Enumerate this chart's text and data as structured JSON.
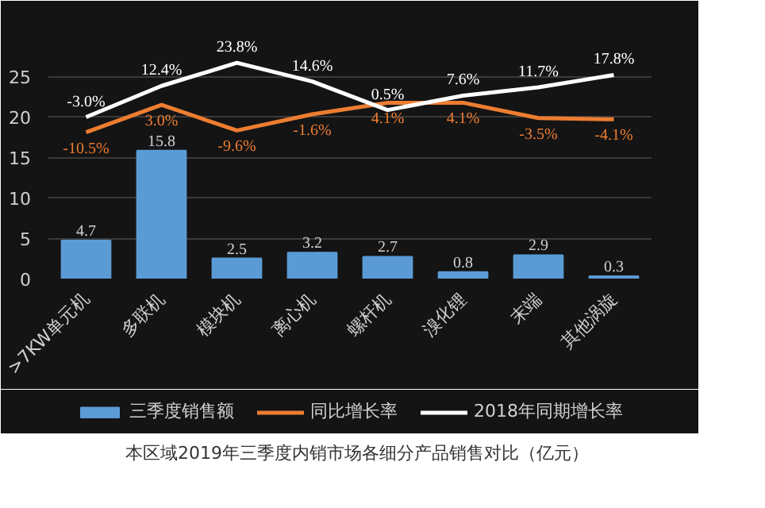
{
  "chart_data": {
    "type": "bar",
    "categories": [
      ">7KW单元机",
      "多联机",
      "模块机",
      "离心机",
      "螺杆机",
      "溴化锂",
      "末端",
      "其他涡旋"
    ],
    "series": [
      {
        "name": "三季度销售额",
        "color": "#5b9bd5",
        "values": [
          4.7,
          15.8,
          2.5,
          3.2,
          2.7,
          0.8,
          2.9,
          0.3
        ],
        "value_labels": [
          "4.7",
          "15.8",
          "2.5",
          "3.2",
          "2.7",
          "0.8",
          "2.9",
          "0.3"
        ]
      },
      {
        "name": "同比增长率",
        "type": "line",
        "axis": "y2",
        "color": "#ed7d31",
        "values": [
          -10.5,
          3.0,
          -9.6,
          -1.6,
          4.1,
          4.1,
          -3.5,
          -4.1
        ],
        "value_labels": [
          "-10.5%",
          "3.0%",
          "-9.6%",
          "-1.6%",
          "4.1%",
          "4.1%",
          "-3.5%",
          "-4.1%"
        ]
      },
      {
        "name": "2018年同期增长率",
        "type": "line",
        "axis": "y2",
        "color": "#ffffff",
        "values": [
          -3.0,
          12.4,
          23.8,
          14.6,
          0.5,
          7.6,
          11.7,
          17.8
        ],
        "value_labels": [
          "-3.0%",
          "12.4%",
          "23.8%",
          "14.6%",
          "0.5%",
          "7.6%",
          "11.7%",
          "17.8%"
        ]
      }
    ],
    "ylim": [
      0,
      30
    ],
    "yticks": [
      0,
      5,
      10,
      15,
      20,
      25
    ],
    "y2lim": [
      -82.8,
      37.2
    ],
    "grid": "y",
    "legend": "bottom",
    "marker": "none",
    "line_style": "solid",
    "annotations": [
      "本区域2019年三季度内销市场各细分产品销售对比（亿元）"
    ]
  }
}
